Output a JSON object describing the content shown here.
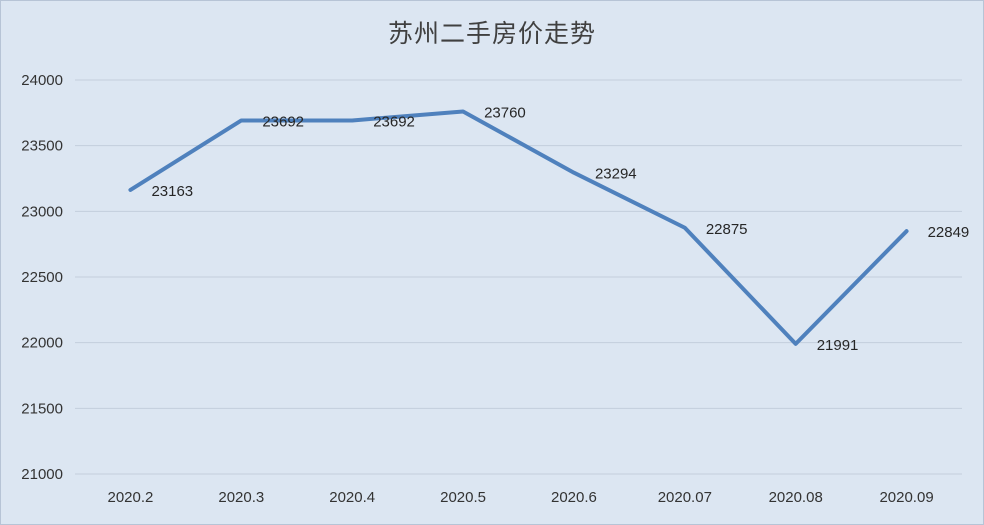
{
  "chart_data": {
    "type": "line",
    "title": "苏州二手房价走势",
    "xlabel": "",
    "ylabel": "",
    "categories": [
      "2020.2",
      "2020.3",
      "2020.4",
      "2020.5",
      "2020.6",
      "2020.07",
      "2020.08",
      "2020.09"
    ],
    "series": [
      {
        "values": [
          23163,
          23692,
          23692,
          23760,
          23294,
          22875,
          21991,
          22849
        ]
      }
    ],
    "ylim": [
      21000,
      24000
    ],
    "yticks": [
      21000,
      21500,
      22000,
      22500,
      23000,
      23500,
      24000
    ],
    "grid": true,
    "legend": "none",
    "data_labels": true,
    "colors": {
      "line": "#4f81bd",
      "background": "#dce6f2",
      "grid": "#c3cedc"
    }
  }
}
